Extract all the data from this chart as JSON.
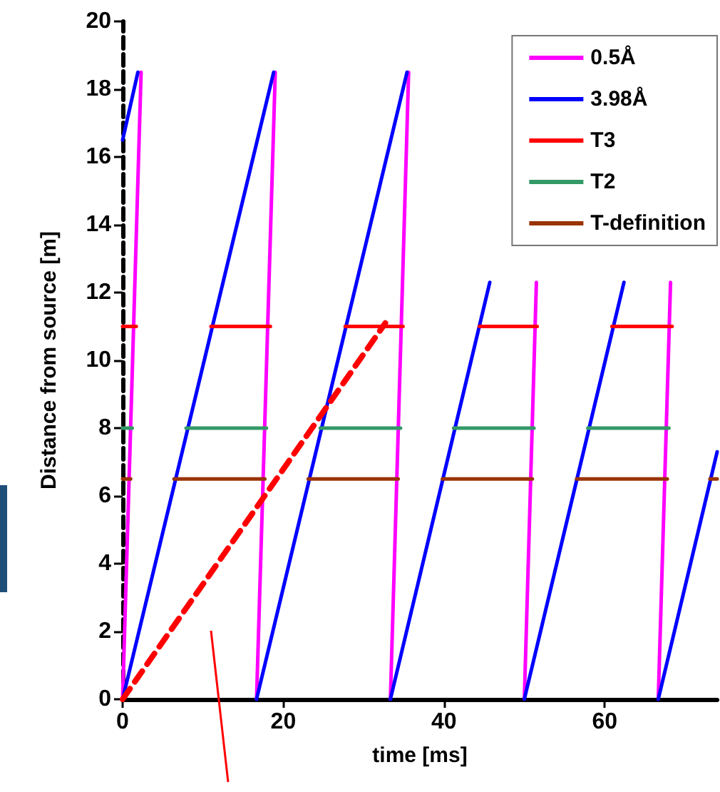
{
  "chart_data": {
    "type": "line",
    "xlabel": "time [ms]",
    "ylabel": "Distance from source [m]",
    "xlim": [
      0,
      74
    ],
    "xticks": [
      0,
      20,
      40,
      60
    ],
    "ylim": [
      0,
      20
    ],
    "yticks": [
      0,
      2,
      4,
      6,
      8,
      10,
      12,
      14,
      16,
      18,
      20
    ],
    "grid": false,
    "legend": "top right",
    "marker": "none",
    "line_style": "solid",
    "series": [
      {
        "name": "0.5Å",
        "color": "#ff00ff",
        "x": [
          0,
          2.3,
          null,
          16.67,
          19,
          null,
          33.33,
          35.6,
          null,
          50,
          51.5,
          null,
          66.67,
          68.2
        ],
        "values": [
          0,
          18.5,
          null,
          0,
          18.5,
          null,
          0,
          18.5,
          null,
          0,
          12.3,
          null,
          0,
          12.3
        ]
      },
      {
        "name": "3.98Å",
        "color": "#0000ff",
        "x": [
          0,
          1.9,
          null,
          0,
          18.8,
          null,
          16.67,
          35.4,
          null,
          33.33,
          45.7,
          null,
          50,
          62.4,
          null,
          66.67,
          74
        ],
        "values": [
          16.5,
          18.5,
          null,
          0,
          18.5,
          null,
          0,
          18.5,
          null,
          0,
          12.3,
          null,
          0,
          12.3,
          null,
          0,
          7.3
        ]
      },
      {
        "name": "T3",
        "color": "#ff0000",
        "x": [
          0,
          1.7,
          null,
          11,
          18.4,
          null,
          27.7,
          34.9,
          null,
          44.4,
          51.6,
          null,
          60.9,
          68.4
        ],
        "values": [
          11,
          11,
          null,
          11,
          11,
          null,
          11,
          11,
          null,
          11,
          11,
          null,
          11,
          11
        ]
      },
      {
        "name": "T2",
        "color": "#339966",
        "x": [
          0,
          1.2,
          null,
          7.9,
          17.9,
          null,
          24.6,
          34.6,
          null,
          41.2,
          51.2,
          null,
          57.9,
          68
        ],
        "values": [
          8,
          8,
          null,
          8,
          8,
          null,
          8,
          8,
          null,
          8,
          8,
          null,
          8,
          8
        ]
      },
      {
        "name": "T-definition",
        "color": "#993300",
        "x": [
          0,
          1,
          null,
          6.4,
          17.7,
          null,
          23.1,
          34.3,
          null,
          39.8,
          51,
          null,
          56.5,
          67.8,
          null,
          73.1,
          74
        ],
        "values": [
          6.5,
          6.5,
          null,
          6.5,
          6.5,
          null,
          6.5,
          6.5,
          null,
          6.5,
          6.5,
          null,
          6.5,
          6.5,
          null,
          6.5,
          6.5
        ]
      },
      {
        "color": "#ff0000",
        "line_style": "dashed",
        "x": [
          0,
          32.7
        ],
        "values": [
          0,
          11.1
        ]
      }
    ]
  }
}
